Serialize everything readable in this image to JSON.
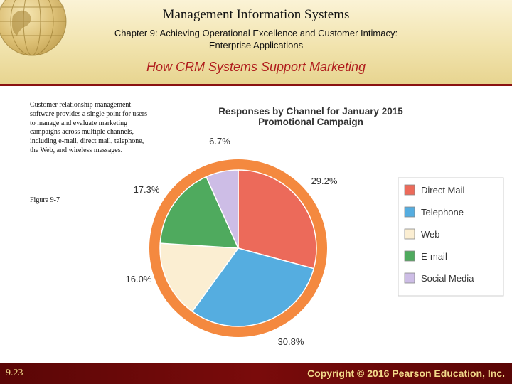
{
  "header": {
    "title": "Management Information Systems",
    "subtitle": "Chapter 9: Achieving Operational Excellence and Customer Intimacy: Enterprise Applications",
    "section_title": "How CRM Systems Support Marketing"
  },
  "body": {
    "description": "Customer relationship management software provides a single point for users to manage and evaluate marketing campaigns across multiple channels, including e-mail, direct mail, telephone, the Web, and wireless messages.",
    "figure_label": "Figure 9-7"
  },
  "footer": {
    "page_number": "9.23",
    "copyright": "Copyright © 2016 Pearson Education, Inc."
  },
  "chart_data": {
    "type": "pie",
    "title": "Responses by Channel for January 2015 Promotional Campaign",
    "slices": [
      {
        "label": "Direct Mail",
        "value": 29.2,
        "value_label": "29.2%",
        "color": "#ec6a5a"
      },
      {
        "label": "Telephone",
        "value": 30.8,
        "value_label": "30.8%",
        "color": "#55ade0"
      },
      {
        "label": "Web",
        "value": 16.0,
        "value_label": "16.0%",
        "color": "#fbeed2"
      },
      {
        "label": "E-mail",
        "value": 17.3,
        "value_label": "17.3%",
        "color": "#4faa5e"
      },
      {
        "label": "Social Media",
        "value": 6.7,
        "value_label": "6.7%",
        "color": "#cdbde6"
      }
    ],
    "ring_color": "#f4893f",
    "legend_position": "right"
  }
}
